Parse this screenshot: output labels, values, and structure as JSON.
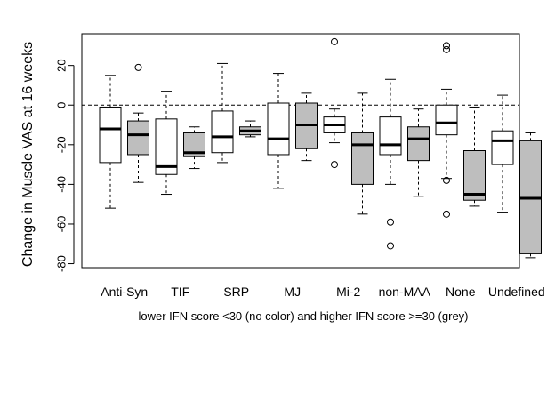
{
  "chart_data": {
    "type": "box",
    "ylabel": "Change in Muscle VAS at 16 weeks",
    "xlabel": "lower IFN score <30 (no color)  and higher IFN score >=30 (grey)",
    "ylim": [
      -82,
      36
    ],
    "yticks": [
      -80,
      -60,
      -40,
      -20,
      0,
      20
    ],
    "reference_line": 0,
    "groups": [
      "Anti-Syn",
      "TIF",
      "SRP",
      "MJ",
      "Mi-2",
      "non-MAA",
      "None",
      "Undefined"
    ],
    "series_colors": {
      "lower": "#ffffff",
      "higher": "#bebebe"
    },
    "boxes": [
      {
        "group": "Anti-Syn",
        "series": "lower",
        "whisker_low": -52,
        "q1": -29,
        "median": -12,
        "q3": -1,
        "whisker_high": 15,
        "outliers": []
      },
      {
        "group": "Anti-Syn",
        "series": "higher",
        "whisker_low": -39,
        "q1": -25,
        "median": -15,
        "q3": -8,
        "whisker_high": -4,
        "outliers": [
          19
        ]
      },
      {
        "group": "TIF",
        "series": "lower",
        "whisker_low": -45,
        "q1": -35,
        "median": -31,
        "q3": -7,
        "whisker_high": 7,
        "outliers": []
      },
      {
        "group": "TIF",
        "series": "higher",
        "whisker_low": -32,
        "q1": -26,
        "median": -24,
        "q3": -14,
        "whisker_high": -11,
        "outliers": []
      },
      {
        "group": "SRP",
        "series": "lower",
        "whisker_low": -29,
        "q1": -24,
        "median": -16,
        "q3": -3,
        "whisker_high": 21,
        "outliers": []
      },
      {
        "group": "SRP",
        "series": "higher",
        "whisker_low": -16,
        "q1": -15,
        "median": -13,
        "q3": -11,
        "whisker_high": -8,
        "outliers": []
      },
      {
        "group": "MJ",
        "series": "lower",
        "whisker_low": -42,
        "q1": -25,
        "median": -17,
        "q3": 1,
        "whisker_high": 16,
        "outliers": []
      },
      {
        "group": "MJ",
        "series": "higher",
        "whisker_low": -28,
        "q1": -22,
        "median": -10,
        "q3": 1,
        "whisker_high": 6,
        "outliers": []
      },
      {
        "group": "Mi-2",
        "series": "lower",
        "whisker_low": -19,
        "q1": -14,
        "median": -10,
        "q3": -6,
        "whisker_high": -2,
        "outliers": [
          32,
          -30
        ]
      },
      {
        "group": "Mi-2",
        "series": "higher",
        "whisker_low": -55,
        "q1": -40,
        "median": -20,
        "q3": -14,
        "whisker_high": 6,
        "outliers": []
      },
      {
        "group": "non-MAA",
        "series": "lower",
        "whisker_low": -40,
        "q1": -25,
        "median": -20,
        "q3": -6,
        "whisker_high": 13,
        "outliers": [
          -59,
          -71
        ]
      },
      {
        "group": "non-MAA",
        "series": "higher",
        "whisker_low": -46,
        "q1": -28,
        "median": -17,
        "q3": -11,
        "whisker_high": -2,
        "outliers": []
      },
      {
        "group": "None",
        "series": "lower",
        "whisker_low": -37,
        "q1": -15,
        "median": -9,
        "q3": 0,
        "whisker_high": 8,
        "outliers": [
          30,
          28,
          -38,
          -55
        ]
      },
      {
        "group": "None",
        "series": "higher",
        "whisker_low": -51,
        "q1": -48,
        "median": -45,
        "q3": -23,
        "whisker_high": -1,
        "outliers": []
      },
      {
        "group": "Undefined",
        "series": "lower",
        "whisker_low": -54,
        "q1": -30,
        "median": -18,
        "q3": -13,
        "whisker_high": 5,
        "outliers": []
      },
      {
        "group": "Undefined",
        "series": "higher",
        "whisker_low": -77,
        "q1": -75,
        "median": -47,
        "q3": -18,
        "whisker_high": -14,
        "outliers": []
      }
    ]
  }
}
